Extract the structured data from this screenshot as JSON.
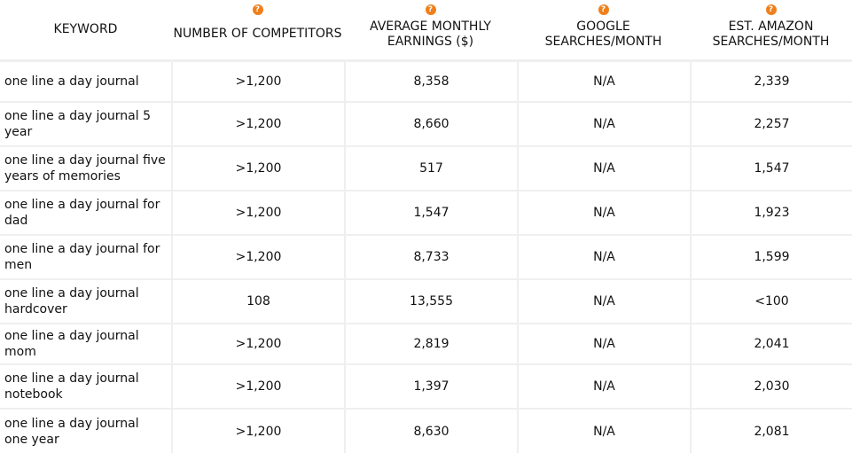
{
  "headers": [
    {
      "label": "KEYWORD",
      "help": false
    },
    {
      "label": "NUMBER OF COMPETITORS",
      "help": true
    },
    {
      "label": "AVERAGE MONTHLY EARNINGS ($)",
      "help": true
    },
    {
      "label": "GOOGLE SEARCHES/MONTH",
      "help": true
    },
    {
      "label": "EST. AMAZON SEARCHES/MONTH",
      "help": true
    }
  ],
  "help_icon_glyph": "?",
  "rows": [
    {
      "keyword": "one line a day journal",
      "competitors": ">1,200",
      "earnings": "8,358",
      "google": "N/A",
      "amazon": "2,339"
    },
    {
      "keyword": "one line a day journal 5 year",
      "competitors": ">1,200",
      "earnings": "8,660",
      "google": "N/A",
      "amazon": "2,257"
    },
    {
      "keyword": "one line a day journal five years of memories",
      "competitors": ">1,200",
      "earnings": "517",
      "google": "N/A",
      "amazon": "1,547"
    },
    {
      "keyword": "one line a day journal for dad",
      "competitors": ">1,200",
      "earnings": "1,547",
      "google": "N/A",
      "amazon": "1,923"
    },
    {
      "keyword": "one line a day journal for men",
      "competitors": ">1,200",
      "earnings": "8,733",
      "google": "N/A",
      "amazon": "1,599"
    },
    {
      "keyword": "one line a day journal hardcover",
      "competitors": "108",
      "earnings": "13,555",
      "google": "N/A",
      "amazon": "<100"
    },
    {
      "keyword": "one line a day journal mom",
      "competitors": ">1,200",
      "earnings": "2,819",
      "google": "N/A",
      "amazon": "2,041"
    },
    {
      "keyword": "one line a day journal notebook",
      "competitors": ">1,200",
      "earnings": "1,397",
      "google": "N/A",
      "amazon": "2,030"
    },
    {
      "keyword": "one line a day journal one year",
      "competitors": ">1,200",
      "earnings": "8,630",
      "google": "N/A",
      "amazon": "2,081"
    }
  ],
  "colors": {
    "accent": "#f07f1b",
    "divider": "#efefef",
    "text": "#111111"
  }
}
